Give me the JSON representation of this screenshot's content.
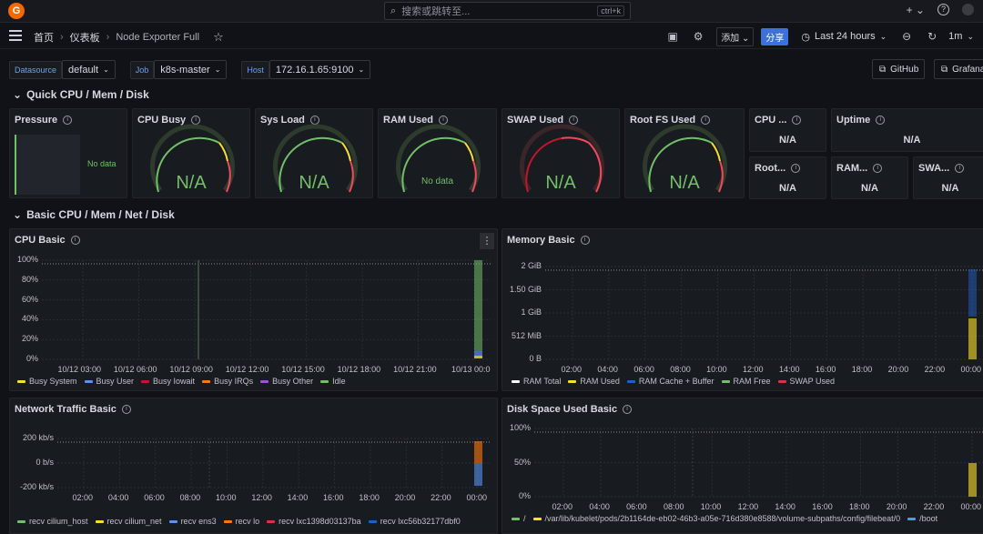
{
  "topbar": {
    "logo_text": "G",
    "search_placeholder": "搜索或跳转至...",
    "search_shortcut": "ctrl+k",
    "plus_label": "+ ⌄",
    "help_label": "?"
  },
  "breadcrumb": {
    "home": "首页",
    "dashboards": "仪表板",
    "current": "Node Exporter Full",
    "sep": "›"
  },
  "toolbar": {
    "add_label": "添加 ⌄",
    "share_label": "分享",
    "time_range": "Last 24 hours",
    "refresh_interval": "1m"
  },
  "variables": [
    {
      "label": "Datasource",
      "value": "default"
    },
    {
      "label": "Job",
      "value": "k8s-master"
    },
    {
      "label": "Host",
      "value": "172.16.1.65:9100"
    }
  ],
  "links": {
    "github": "GitHub",
    "grafana": "Grafana"
  },
  "rows": {
    "quick": "Quick CPU / Mem / Disk",
    "basic": "Basic CPU / Mem / Net / Disk"
  },
  "quick_panels": {
    "pressure": {
      "title": "Pressure",
      "value": "No data"
    },
    "cpu_busy": {
      "title": "CPU Busy",
      "value": "N/A"
    },
    "sys_load": {
      "title": "Sys Load",
      "value": "N/A"
    },
    "ram_used": {
      "title": "RAM Used",
      "value": "No data"
    },
    "swap_used": {
      "title": "SWAP Used",
      "value": "N/A"
    },
    "rootfs_used": {
      "title": "Root FS Used",
      "value": "N/A"
    },
    "cpu_cores": {
      "title": "CPU ...",
      "value": "N/A"
    },
    "uptime": {
      "title": "Uptime",
      "value": "N/A"
    },
    "rootfs_total": {
      "title": "Root...",
      "value": "N/A"
    },
    "ram_total": {
      "title": "RAM...",
      "value": "N/A"
    },
    "swap_total": {
      "title": "SWA...",
      "value": "N/A"
    }
  },
  "cpu_basic": {
    "title": "CPU Basic",
    "y_ticks": [
      "100%",
      "80%",
      "60%",
      "40%",
      "20%",
      "0%"
    ],
    "x_ticks": [
      "10/12 03:00",
      "10/12 06:00",
      "10/12 09:00",
      "10/12 12:00",
      "10/12 15:00",
      "10/12 18:00",
      "10/12 21:00",
      "10/13 00:0"
    ],
    "legend": [
      {
        "name": "Busy System",
        "color": "#fade2a"
      },
      {
        "name": "Busy User",
        "color": "#5794f2"
      },
      {
        "name": "Busy Iowait",
        "color": "#c4162a"
      },
      {
        "name": "Busy IRQs",
        "color": "#ff780a"
      },
      {
        "name": "Busy Other",
        "color": "#a352cc"
      },
      {
        "name": "Idle",
        "color": "#73bf69"
      }
    ]
  },
  "memory_basic": {
    "title": "Memory Basic",
    "y_ticks": [
      "2 GiB",
      "1.50 GiB",
      "1 GiB",
      "512 MiB",
      "0 B"
    ],
    "x_ticks": [
      "02:00",
      "04:00",
      "06:00",
      "08:00",
      "10:00",
      "12:00",
      "14:00",
      "16:00",
      "18:00",
      "20:00",
      "22:00",
      "00:00"
    ],
    "legend": [
      {
        "name": "RAM Total",
        "color": "#ffffff"
      },
      {
        "name": "RAM Used",
        "color": "#fade2a"
      },
      {
        "name": "RAM Cache + Buffer",
        "color": "#1f60c4"
      },
      {
        "name": "RAM Free",
        "color": "#73bf69"
      },
      {
        "name": "SWAP Used",
        "color": "#e02f44"
      }
    ]
  },
  "network_basic": {
    "title": "Network Traffic Basic",
    "y_ticks": [
      "200 kb/s",
      "0 b/s",
      "-200 kb/s"
    ],
    "x_ticks": [
      "02:00",
      "04:00",
      "06:00",
      "08:00",
      "10:00",
      "12:00",
      "14:00",
      "16:00",
      "18:00",
      "20:00",
      "22:00",
      "00:00"
    ],
    "legend": [
      {
        "name": "recv cilium_host",
        "color": "#73bf69"
      },
      {
        "name": "recv cilium_net",
        "color": "#fade2a"
      },
      {
        "name": "recv ens3",
        "color": "#5794f2"
      },
      {
        "name": "recv lo",
        "color": "#ff780a"
      },
      {
        "name": "recv lxc1398d03137ba",
        "color": "#e02f44"
      },
      {
        "name": "recv lxc56b32177dbf0",
        "color": "#1f60c4"
      }
    ]
  },
  "disk_basic": {
    "title": "Disk Space Used Basic",
    "y_ticks": [
      "100%",
      "50%",
      "0%"
    ],
    "x_ticks": [
      "02:00",
      "04:00",
      "06:00",
      "08:00",
      "10:00",
      "12:00",
      "14:00",
      "16:00",
      "18:00",
      "20:00",
      "22:00",
      "00:00"
    ],
    "legend": [
      {
        "name": "/",
        "color": "#73bf69"
      },
      {
        "name": "/var/lib/kubelet/pods/2b1164de-eb02-46b3-a05e-716d380e8588/volume-subpaths/config/filebeat/0",
        "color": "#fade2a"
      },
      {
        "name": "/boot",
        "color": "#5794f2"
      }
    ]
  }
}
